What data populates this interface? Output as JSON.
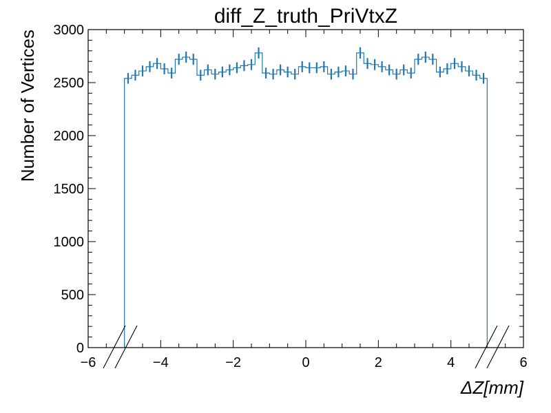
{
  "chart_data": {
    "type": "histogram",
    "title": "diff_Z_truth_PriVtxZ",
    "xlabel_symbol": "ΔZ",
    "xlabel_unit": "[mm]",
    "ylabel": "Number of Vertices",
    "xlim": [
      -6,
      6
    ],
    "ylim": [
      0,
      3000
    ],
    "x_ticks": [
      -6,
      -4,
      -2,
      0,
      2,
      4,
      6
    ],
    "x_tick_labels": [
      "−6",
      "−4",
      "−2",
      "0",
      "2",
      "4",
      "6"
    ],
    "y_ticks": [
      0,
      500,
      1000,
      1500,
      2000,
      2500,
      3000
    ],
    "y_tick_labels": [
      "0",
      "500",
      "1000",
      "1500",
      "2000",
      "2500",
      "3000"
    ],
    "line_color": "#1f77b4",
    "bin_edges_start": -5,
    "bin_width": 0.2,
    "counts": [
      2540,
      2570,
      2610,
      2650,
      2680,
      2630,
      2590,
      2720,
      2740,
      2720,
      2570,
      2620,
      2580,
      2600,
      2620,
      2640,
      2660,
      2670,
      2780,
      2590,
      2580,
      2620,
      2600,
      2580,
      2650,
      2640,
      2640,
      2650,
      2580,
      2600,
      2610,
      2580,
      2780,
      2680,
      2670,
      2650,
      2620,
      2580,
      2620,
      2590,
      2720,
      2740,
      2720,
      2600,
      2630,
      2680,
      2650,
      2610,
      2570,
      2540
    ],
    "errors_visible": true,
    "axis_break_marks": true
  }
}
